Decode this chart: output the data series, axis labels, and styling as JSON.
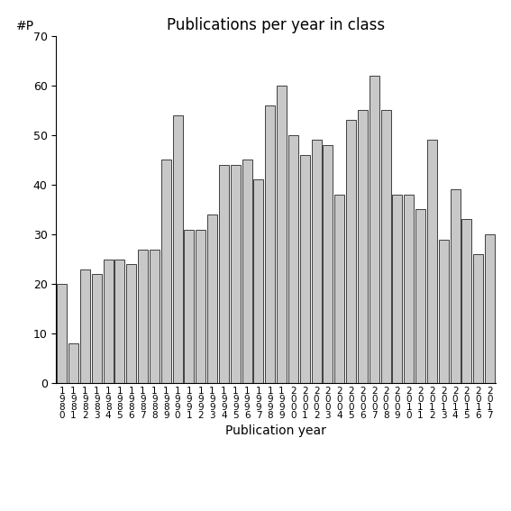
{
  "title": "Publications per year in class",
  "xlabel": "Publication year",
  "ylabel": "#P",
  "years": [
    1980,
    1981,
    1982,
    1983,
    1984,
    1985,
    1986,
    1987,
    1988,
    1989,
    1990,
    1991,
    1992,
    1993,
    1994,
    1995,
    1996,
    1997,
    1998,
    1999,
    2000,
    2001,
    2002,
    2003,
    2004,
    2005,
    2006,
    2007,
    2008,
    2009,
    2010,
    2011,
    2012,
    2013,
    2014,
    2015,
    2016,
    2017
  ],
  "values": [
    20,
    8,
    23,
    22,
    25,
    25,
    24,
    27,
    27,
    45,
    54,
    31,
    31,
    34,
    44,
    44,
    45,
    41,
    56,
    60,
    50,
    46,
    49,
    48,
    38,
    53,
    55,
    62,
    55,
    38,
    38,
    35,
    49,
    29,
    39,
    33,
    26,
    30
  ],
  "bar_color": "#c8c8c8",
  "bar_edgecolor": "#000000",
  "ylim": [
    0,
    70
  ],
  "yticks": [
    0,
    10,
    20,
    30,
    40,
    50,
    60,
    70
  ],
  "background_color": "#ffffff",
  "title_fontsize": 12,
  "xlabel_fontsize": 10,
  "ylabel_fontsize": 10,
  "tick_fontsize": 9
}
